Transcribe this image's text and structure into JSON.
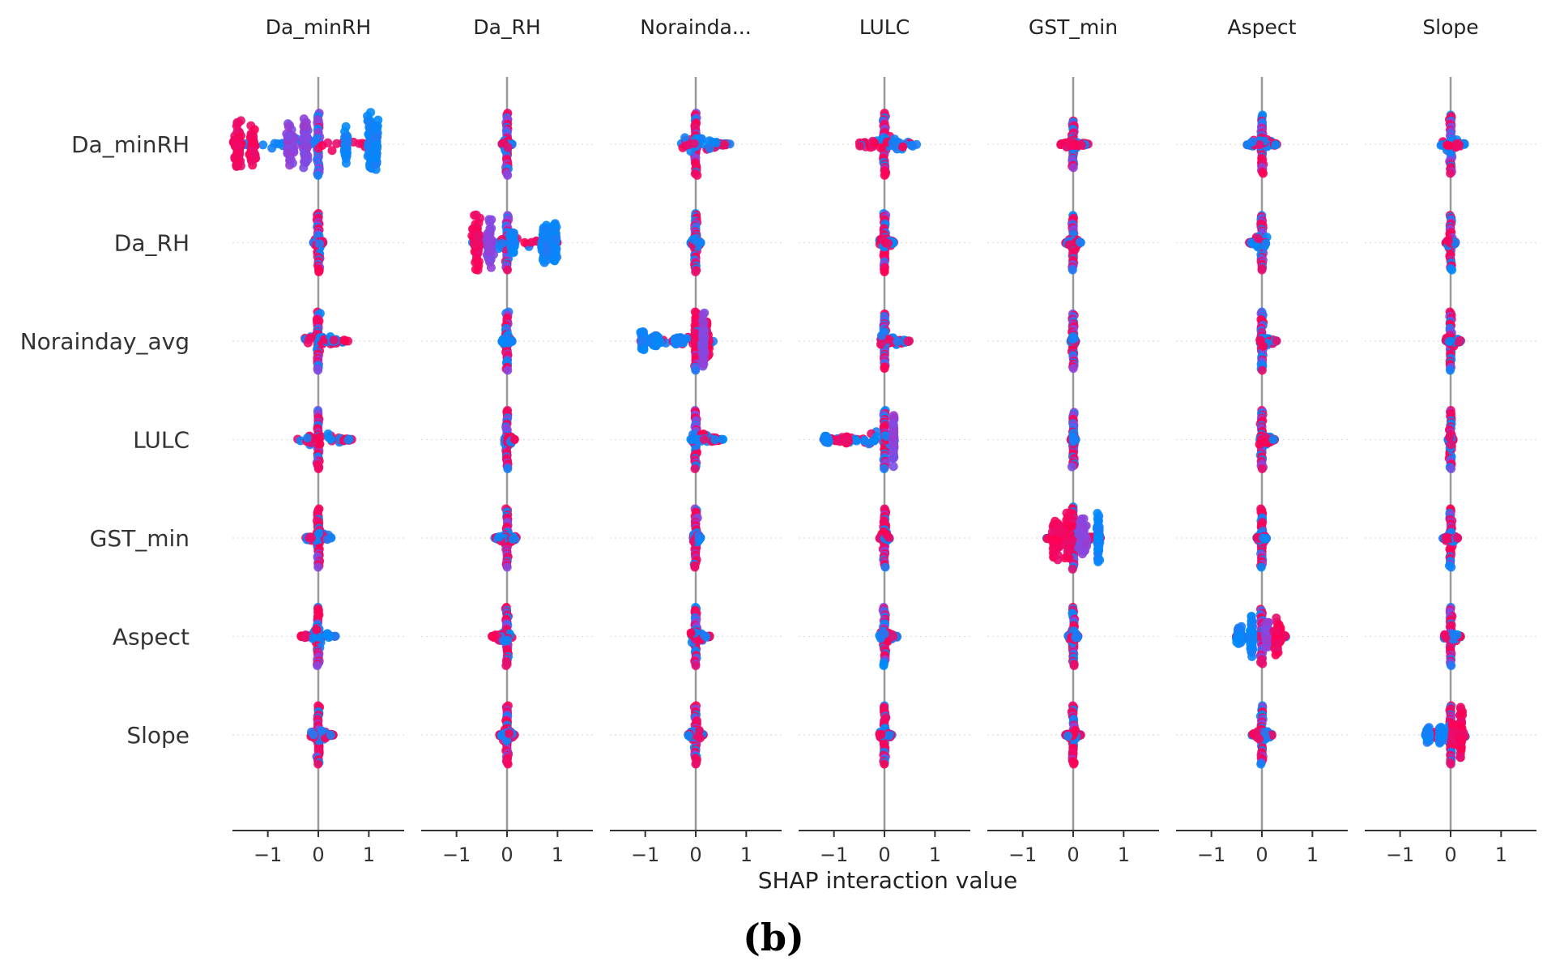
{
  "chart_data": {
    "type": "scatter",
    "subtype": "shap-interaction-beeswarm",
    "features": [
      "Da_minRH",
      "Da_RH",
      "Norainday_avg",
      "LULC",
      "GST_min",
      "Aspect",
      "Slope"
    ],
    "column_titles": [
      "Da_minRH",
      "Da_RH",
      "Norainda...",
      "LULC",
      "GST_min",
      "Aspect",
      "Slope"
    ],
    "xlabel": "SHAP interaction value",
    "xlim": [
      -1.7,
      1.7
    ],
    "xticks": [
      -1,
      0,
      1
    ],
    "xtick_labels": [
      "−1",
      "0",
      "1"
    ],
    "caption": "(b)",
    "colormap": {
      "low": "#008afb",
      "mid": "#8b45e0",
      "high": "#ff0052"
    },
    "zero_line_color": "#999999",
    "cells": [
      [
        {
          "min": -1.7,
          "max": 1.2,
          "height": 0.8,
          "bias": 0.05,
          "clusters": [
            [
              -1.6,
              0.15,
              0.85,
              "high"
            ],
            [
              -1.3,
              0.1,
              0.6,
              "high"
            ],
            [
              -0.55,
              0.15,
              0.7,
              "mid"
            ],
            [
              -0.25,
              0.1,
              0.7,
              "mid"
            ],
            [
              0.55,
              0.05,
              0.6,
              "low"
            ],
            [
              1.05,
              0.12,
              1.0,
              "low"
            ],
            [
              1.15,
              0.05,
              0.8,
              "low"
            ]
          ]
        },
        {
          "min": -0.1,
          "max": 0.1,
          "height": 0.8,
          "bias": 0.3
        },
        {
          "min": -0.3,
          "max": 0.7,
          "height": 0.8,
          "bias": 0.6
        },
        {
          "min": -0.5,
          "max": 0.7,
          "height": 0.8,
          "bias": 0.65
        },
        {
          "min": -0.25,
          "max": 0.3,
          "height": 0.6,
          "bias": 0.4
        },
        {
          "min": -0.35,
          "max": 0.3,
          "height": 0.75,
          "bias": 0.5
        },
        {
          "min": -0.2,
          "max": 0.3,
          "height": 0.75,
          "bias": 0.5
        }
      ],
      [
        {
          "min": -0.1,
          "max": 0.1,
          "height": 0.75,
          "bias": 0.55
        },
        {
          "min": -0.7,
          "max": 1.0,
          "height": 0.7,
          "bias": 0.2,
          "clusters": [
            [
              -0.6,
              0.12,
              0.8,
              "high"
            ],
            [
              -0.35,
              0.1,
              0.7,
              "mid"
            ],
            [
              0.1,
              0.08,
              0.3,
              "low"
            ],
            [
              0.75,
              0.12,
              0.55,
              "low"
            ],
            [
              0.95,
              0.05,
              0.7,
              "low"
            ]
          ]
        },
        {
          "min": -0.1,
          "max": 0.1,
          "height": 0.75,
          "bias": 0.55
        },
        {
          "min": -0.1,
          "max": 0.2,
          "height": 0.75,
          "bias": 0.55
        },
        {
          "min": -0.15,
          "max": 0.15,
          "height": 0.7,
          "bias": 0.4
        },
        {
          "min": -0.25,
          "max": 0.1,
          "height": 0.7,
          "bias": 0.55
        },
        {
          "min": -0.1,
          "max": 0.1,
          "height": 0.7,
          "bias": 0.55
        }
      ],
      [
        {
          "min": -0.3,
          "max": 0.6,
          "height": 0.75,
          "bias": 0.5
        },
        {
          "min": -0.1,
          "max": 0.1,
          "height": 0.75,
          "bias": 0.5
        },
        {
          "min": -1.1,
          "max": 0.35,
          "height": 0.75,
          "bias": 0.6,
          "clusters": [
            [
              -1.05,
              0.05,
              0.3,
              "low"
            ],
            [
              -0.8,
              0.15,
              0.15,
              "low"
            ],
            [
              -0.35,
              0.1,
              0.1,
              "low"
            ],
            [
              0.2,
              0.1,
              0.6,
              "high"
            ],
            [
              0.15,
              0.05,
              0.75,
              "mid"
            ]
          ]
        },
        {
          "min": -0.1,
          "max": 0.5,
          "height": 0.7,
          "bias": 0.45
        },
        {
          "min": -0.05,
          "max": 0.05,
          "height": 0.7,
          "bias": 0.5
        },
        {
          "min": -0.05,
          "max": 0.3,
          "height": 0.75,
          "bias": 0.5
        },
        {
          "min": -0.1,
          "max": 0.2,
          "height": 0.75,
          "bias": 0.5
        }
      ],
      [
        {
          "min": -0.45,
          "max": 0.7,
          "height": 0.75,
          "bias": 0.5
        },
        {
          "min": -0.05,
          "max": 0.15,
          "height": 0.75,
          "bias": 0.5
        },
        {
          "min": -0.1,
          "max": 0.55,
          "height": 0.75,
          "bias": 0.4
        },
        {
          "min": -1.25,
          "max": 0.2,
          "height": 0.75,
          "bias": 0.6,
          "clusters": [
            [
              -1.15,
              0.08,
              0.1,
              "low"
            ],
            [
              -0.75,
              0.05,
              0.1,
              "high"
            ],
            [
              0.18,
              0.02,
              0.75,
              "mid"
            ]
          ]
        },
        {
          "min": -0.05,
          "max": 0.05,
          "height": 0.7,
          "bias": 0.5
        },
        {
          "min": -0.05,
          "max": 0.25,
          "height": 0.75,
          "bias": 0.5
        },
        {
          "min": -0.05,
          "max": 0.05,
          "height": 0.75,
          "bias": 0.5
        }
      ],
      [
        {
          "min": -0.25,
          "max": 0.3,
          "height": 0.75,
          "bias": 0.55
        },
        {
          "min": -0.25,
          "max": 0.2,
          "height": 0.75,
          "bias": 0.55
        },
        {
          "min": -0.05,
          "max": 0.1,
          "height": 0.75,
          "bias": 0.6
        },
        {
          "min": -0.1,
          "max": 0.1,
          "height": 0.75,
          "bias": 0.6
        },
        {
          "min": -0.55,
          "max": 0.55,
          "height": 0.8,
          "bias": 0.55,
          "clusters": [
            [
              -0.35,
              0.12,
              0.6,
              "high"
            ],
            [
              -0.1,
              0.12,
              0.75,
              "high"
            ],
            [
              0.2,
              0.12,
              0.55,
              "mid"
            ],
            [
              0.5,
              0.04,
              0.8,
              "low"
            ]
          ]
        },
        {
          "min": -0.1,
          "max": 0.1,
          "height": 0.75,
          "bias": 0.6
        },
        {
          "min": -0.15,
          "max": 0.15,
          "height": 0.75,
          "bias": 0.6
        }
      ],
      [
        {
          "min": -0.35,
          "max": 0.35,
          "height": 0.75,
          "bias": 0.6
        },
        {
          "min": -0.3,
          "max": 0.1,
          "height": 0.75,
          "bias": 0.6
        },
        {
          "min": -0.1,
          "max": 0.3,
          "height": 0.75,
          "bias": 0.55
        },
        {
          "min": -0.1,
          "max": 0.25,
          "height": 0.75,
          "bias": 0.5
        },
        {
          "min": -0.1,
          "max": 0.1,
          "height": 0.75,
          "bias": 0.55
        },
        {
          "min": -0.55,
          "max": 0.5,
          "height": 0.7,
          "bias": 0.5,
          "clusters": [
            [
              -0.45,
              0.08,
              0.3,
              "low"
            ],
            [
              -0.2,
              0.05,
              0.7,
              "low"
            ],
            [
              0.1,
              0.06,
              0.5,
              "mid"
            ],
            [
              0.3,
              0.12,
              0.55,
              "high"
            ]
          ]
        },
        {
          "min": -0.15,
          "max": 0.2,
          "height": 0.75,
          "bias": 0.55
        }
      ],
      [
        {
          "min": -0.15,
          "max": 0.3,
          "height": 0.75,
          "bias": 0.6
        },
        {
          "min": -0.15,
          "max": 0.15,
          "height": 0.75,
          "bias": 0.6
        },
        {
          "min": -0.15,
          "max": 0.15,
          "height": 0.75,
          "bias": 0.6
        },
        {
          "min": -0.1,
          "max": 0.15,
          "height": 0.75,
          "bias": 0.55
        },
        {
          "min": -0.15,
          "max": 0.15,
          "height": 0.75,
          "bias": 0.6
        },
        {
          "min": -0.2,
          "max": 0.2,
          "height": 0.75,
          "bias": 0.65
        },
        {
          "min": -0.55,
          "max": 0.3,
          "height": 0.75,
          "bias": 0.55,
          "clusters": [
            [
              -0.45,
              0.05,
              0.2,
              "low"
            ],
            [
              -0.2,
              0.05,
              0.25,
              "low"
            ],
            [
              0.05,
              0.04,
              0.3,
              "high"
            ],
            [
              0.2,
              0.05,
              0.75,
              "high"
            ]
          ]
        }
      ]
    ]
  }
}
